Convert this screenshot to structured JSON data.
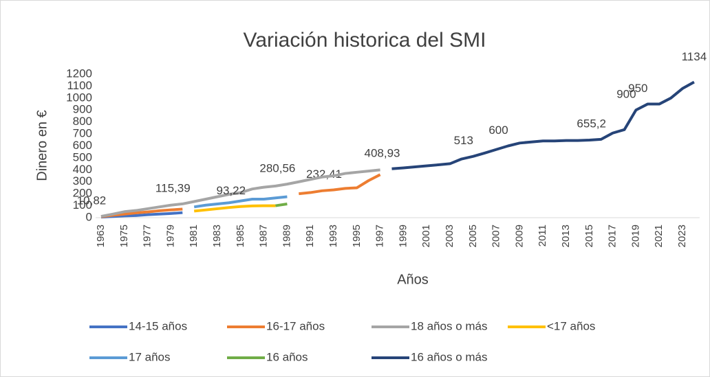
{
  "chart_data": {
    "type": "line",
    "title": "Variación historica del SMI",
    "x_label": "Años",
    "y_label": "Dinero en €",
    "categories": [
      "1963",
      null,
      "1975",
      null,
      "1977",
      null,
      "1979",
      null,
      "1981",
      null,
      "1983",
      null,
      "1985",
      null,
      "1987",
      null,
      "1989",
      null,
      "1991",
      null,
      "1993",
      null,
      "1995",
      null,
      "1997",
      null,
      "1999",
      null,
      "2001",
      null,
      "2003",
      null,
      "2005",
      null,
      "2007",
      null,
      "2009",
      null,
      "2011",
      null,
      "2013",
      null,
      "2015",
      null,
      "2017",
      null,
      "2019",
      null,
      "2021",
      null,
      "2023",
      null
    ],
    "ylim": [
      0,
      1200
    ],
    "yticks": [
      0,
      100,
      200,
      300,
      400,
      500,
      600,
      700,
      800,
      900,
      1000,
      1100,
      1200
    ],
    "grid": false,
    "legend": "bottom",
    "series": [
      {
        "name": "14-15 años",
        "color": "#4472c4",
        "values": [
          5,
          10,
          15,
          18,
          25,
          30,
          35,
          42,
          null,
          null,
          null,
          null,
          null,
          null,
          null,
          null,
          null,
          null,
          null,
          null,
          null,
          null,
          null,
          null,
          null,
          null,
          null,
          null,
          null,
          null,
          null,
          null,
          null,
          null,
          null,
          null,
          null,
          null,
          null,
          null,
          null,
          null,
          null,
          null,
          null,
          null,
          null,
          null,
          null,
          null,
          null,
          null
        ]
      },
      {
        "name": "16-17 años",
        "color": "#ed7d31",
        "values": [
          8,
          20,
          30,
          40,
          48,
          58,
          65,
          72,
          null,
          null,
          null,
          null,
          null,
          null,
          null,
          null,
          null,
          200,
          210,
          225,
          232.41,
          245,
          250,
          310,
          360,
          null,
          null,
          null,
          null,
          null,
          null,
          null,
          null,
          null,
          null,
          null,
          null,
          null,
          null,
          null,
          null,
          null,
          null,
          null,
          null,
          null,
          null,
          null,
          null,
          null,
          null,
          null
        ],
        "value_labels": [
          null,
          null,
          null,
          null,
          null,
          null,
          null,
          null,
          null,
          null,
          null,
          null,
          null,
          null,
          null,
          null,
          null,
          null,
          null,
          null,
          "232,41",
          null,
          null,
          null,
          null,
          null,
          null,
          null,
          null,
          null,
          null,
          null,
          null,
          null,
          null,
          null,
          null,
          null,
          null,
          null,
          null,
          null,
          null,
          null,
          null,
          null,
          null,
          null,
          null,
          null,
          null,
          null
        ]
      },
      {
        "name": "18 años o más",
        "color": "#a5a5a5",
        "values": [
          10.82,
          30,
          50,
          60,
          75,
          90,
          105,
          115.39,
          135,
          155,
          175,
          195,
          210,
          240,
          255,
          265,
          280.56,
          300,
          320,
          340,
          350,
          370,
          380,
          390,
          400,
          null,
          null,
          null,
          null,
          null,
          null,
          null,
          null,
          null,
          null,
          null,
          null,
          null,
          null,
          null,
          null,
          null,
          null,
          null,
          null,
          null,
          null,
          null,
          null,
          null,
          null,
          null
        ],
        "value_labels": [
          "10,82",
          null,
          null,
          null,
          null,
          null,
          null,
          "115,39",
          null,
          null,
          null,
          null,
          null,
          null,
          null,
          null,
          "280,56",
          null,
          null,
          null,
          null,
          null,
          null,
          null,
          null,
          null,
          null,
          null,
          null,
          null,
          null,
          null,
          null,
          null,
          null,
          null,
          null,
          null,
          null,
          null,
          null,
          null,
          null,
          null,
          null,
          null,
          null,
          null,
          null,
          null,
          null,
          null
        ]
      },
      {
        "name": "<17 años",
        "color": "#ffc000",
        "values": [
          null,
          null,
          null,
          null,
          null,
          null,
          null,
          null,
          55,
          65,
          75,
          85,
          93.22,
          98,
          100,
          100,
          null,
          null,
          null,
          null,
          null,
          null,
          null,
          null,
          null,
          null,
          null,
          null,
          null,
          null,
          null,
          null,
          null,
          null,
          null,
          null,
          null,
          null,
          null,
          null,
          null,
          null,
          null,
          null,
          null,
          null,
          null,
          null,
          null,
          null,
          null,
          null
        ],
        "value_labels": [
          null,
          null,
          null,
          null,
          null,
          null,
          null,
          null,
          null,
          null,
          null,
          null,
          "93,22",
          null,
          null,
          null,
          null,
          null,
          null,
          null,
          null,
          null,
          null,
          null,
          null,
          null,
          null,
          null,
          null,
          null,
          null,
          null,
          null,
          null,
          null,
          null,
          null,
          null,
          null,
          null,
          null,
          null,
          null,
          null,
          null,
          null,
          null,
          null,
          null,
          null,
          null,
          null
        ]
      },
      {
        "name": "17 años",
        "color": "#5b9bd5",
        "values": [
          null,
          null,
          null,
          null,
          null,
          null,
          null,
          null,
          90,
          105,
          115,
          125,
          140,
          155,
          155,
          165,
          175,
          null,
          null,
          null,
          null,
          null,
          null,
          null,
          null,
          null,
          null,
          null,
          null,
          null,
          null,
          null,
          null,
          null,
          null,
          null,
          null,
          null,
          null,
          null,
          null,
          null,
          null,
          null,
          null,
          null,
          null,
          null,
          null,
          null,
          null,
          null
        ]
      },
      {
        "name": "16 años",
        "color": "#70ad47",
        "values": [
          null,
          null,
          null,
          null,
          null,
          null,
          null,
          null,
          null,
          null,
          null,
          null,
          null,
          null,
          null,
          100,
          115,
          null,
          null,
          null,
          null,
          null,
          null,
          null,
          null,
          null,
          null,
          null,
          null,
          null,
          null,
          null,
          null,
          null,
          null,
          null,
          null,
          null,
          null,
          null,
          null,
          null,
          null,
          null,
          null,
          null,
          null,
          null,
          null,
          null,
          null,
          null
        ]
      },
      {
        "name": "16 años o más",
        "color": "#264478",
        "values": [
          null,
          null,
          null,
          null,
          null,
          null,
          null,
          null,
          null,
          null,
          null,
          null,
          null,
          null,
          null,
          null,
          null,
          null,
          null,
          null,
          null,
          null,
          null,
          null,
          null,
          408.93,
          416.32,
          424.8,
          433.45,
          442.2,
          451.2,
          490.8,
          513,
          540.9,
          570.6,
          600,
          624,
          633.3,
          641.4,
          641.4,
          645.3,
          645.3,
          648.6,
          655.2,
          707.6,
          735.9,
          900,
          950,
          950,
          1000,
          1080,
          1134
        ],
        "value_labels": [
          null,
          null,
          null,
          null,
          null,
          null,
          null,
          null,
          null,
          null,
          null,
          null,
          null,
          null,
          null,
          null,
          null,
          null,
          null,
          null,
          null,
          null,
          null,
          null,
          null,
          "408,93",
          null,
          null,
          null,
          null,
          null,
          null,
          "513",
          null,
          null,
          "600",
          null,
          null,
          null,
          null,
          null,
          null,
          null,
          "655,2",
          null,
          null,
          "900",
          "950",
          null,
          null,
          null,
          "1134"
        ]
      }
    ]
  }
}
